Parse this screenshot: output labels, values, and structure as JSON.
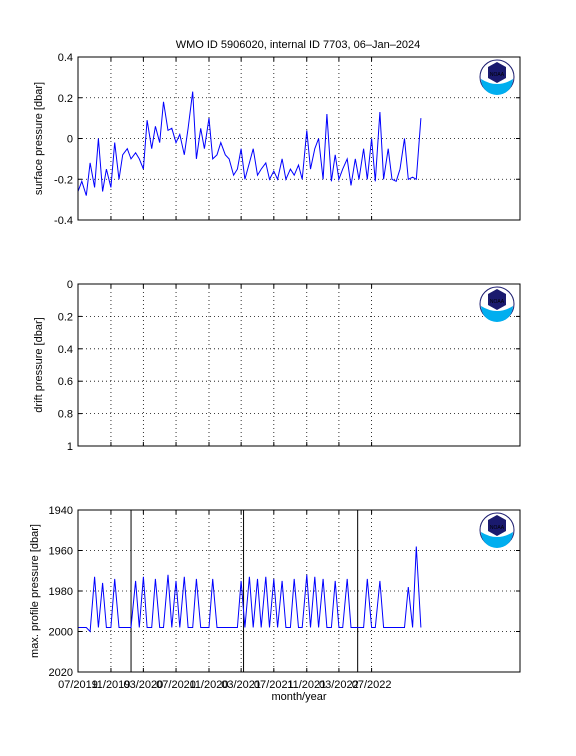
{
  "figure": {
    "title": "WMO ID 5906020, internal ID 7703, 06–Jan–2024",
    "background": "#ffffff",
    "line_color": "#0000ff",
    "logo_text": "NOAA",
    "logo_colors": {
      "dark": "#1a1a6e",
      "light": "#00aeef",
      "white": "#ffffff"
    }
  },
  "chart_data": [
    {
      "type": "line",
      "title": "WMO ID 5906020, internal ID 7703, 06–Jan–2024",
      "ylabel": "surface pressure [dbar]",
      "xlabel": "",
      "ylim": [
        -0.4,
        0.4
      ],
      "y_reversed": false,
      "yticks": [
        "-0.4",
        "-0.2",
        "0",
        "0.2",
        "0.4"
      ],
      "ytick_values": [
        -0.4,
        -0.2,
        0,
        0.2,
        0.4
      ],
      "xlim": [
        "2019-07-01",
        "2024-01-06"
      ],
      "grid": true,
      "vlines": [],
      "series": [
        {
          "x": [
            "2019-07-01",
            "2019-07-15",
            "2019-08-01",
            "2019-08-15",
            "2019-09-01",
            "2019-09-15",
            "2019-10-01",
            "2019-10-15",
            "2019-11-01",
            "2019-11-15",
            "2019-12-01",
            "2019-12-15",
            "2020-01-01",
            "2020-01-15",
            "2020-02-01",
            "2020-02-15",
            "2020-03-01",
            "2020-03-15",
            "2020-04-01",
            "2020-04-15",
            "2020-05-01",
            "2020-05-15",
            "2020-06-01",
            "2020-06-15",
            "2020-07-01",
            "2020-07-15",
            "2020-08-01",
            "2020-08-15",
            "2020-09-01",
            "2020-09-15",
            "2020-10-01",
            "2020-10-15",
            "2020-11-01",
            "2020-11-15",
            "2020-12-01",
            "2020-12-15",
            "2021-01-01",
            "2021-01-15",
            "2021-02-01",
            "2021-02-15",
            "2021-03-01",
            "2021-03-15",
            "2021-04-01",
            "2021-04-15",
            "2021-05-01",
            "2021-05-15",
            "2021-06-01",
            "2021-06-15",
            "2021-07-01",
            "2021-07-15",
            "2021-08-01",
            "2021-08-15",
            "2021-09-01",
            "2021-09-15",
            "2021-10-01",
            "2021-10-15",
            "2021-11-01",
            "2021-11-15",
            "2021-12-01",
            "2021-12-15",
            "2022-01-01",
            "2022-01-15",
            "2022-02-01",
            "2022-02-15",
            "2022-03-01",
            "2022-03-15",
            "2022-04-01",
            "2022-04-15",
            "2022-05-01",
            "2022-05-15",
            "2022-06-01",
            "2022-06-15",
            "2022-07-01",
            "2022-07-15",
            "2022-08-01",
            "2022-08-15",
            "2022-09-01",
            "2022-09-15",
            "2022-10-01",
            "2022-10-15",
            "2022-11-01",
            "2022-11-15",
            "2022-12-01",
            "2022-12-15",
            "2023-01-01"
          ],
          "y": [
            -0.26,
            -0.21,
            -0.28,
            -0.12,
            -0.24,
            0.0,
            -0.26,
            -0.15,
            -0.24,
            -0.02,
            -0.2,
            -0.08,
            -0.05,
            -0.1,
            -0.07,
            -0.1,
            -0.15,
            0.09,
            -0.05,
            0.06,
            -0.02,
            0.18,
            0.04,
            0.05,
            -0.02,
            0.02,
            -0.08,
            0.05,
            0.23,
            -0.1,
            0.05,
            -0.05,
            0.1,
            -0.1,
            -0.08,
            -0.02,
            -0.08,
            -0.1,
            -0.18,
            -0.15,
            -0.05,
            -0.2,
            -0.12,
            -0.05,
            -0.18,
            -0.15,
            -0.12,
            -0.2,
            -0.16,
            -0.2,
            -0.1,
            -0.2,
            -0.15,
            -0.18,
            -0.13,
            -0.2,
            0.04,
            -0.15,
            -0.05,
            0.0,
            -0.2,
            0.12,
            -0.21,
            -0.08,
            -0.2,
            -0.15,
            -0.1,
            -0.23,
            -0.1,
            -0.2,
            -0.05,
            -0.2,
            0.0,
            -0.21,
            0.13,
            -0.2,
            -0.05,
            -0.2,
            -0.21,
            -0.15,
            0.0,
            -0.2,
            -0.19,
            -0.2,
            0.1
          ]
        }
      ]
    },
    {
      "type": "line",
      "title": "",
      "ylabel": "drift pressure [dbar]",
      "xlabel": "",
      "ylim": [
        0,
        1
      ],
      "y_reversed": true,
      "yticks": [
        "0",
        "0.2",
        "0.4",
        "0.6",
        "0.8",
        "1"
      ],
      "ytick_values": [
        0,
        0.2,
        0.4,
        0.6,
        0.8,
        1
      ],
      "xlim": [
        "2019-07-01",
        "2024-01-06"
      ],
      "grid": true,
      "vlines": [],
      "series": []
    },
    {
      "type": "line",
      "title": "",
      "ylabel": "max. profile pressure [dbar]",
      "xlabel": "month/year",
      "ylim": [
        1940,
        2020
      ],
      "y_reversed": true,
      "yticks": [
        "1940",
        "1960",
        "1980",
        "2000",
        "2020"
      ],
      "ytick_values": [
        1940,
        1960,
        1980,
        2000,
        2020
      ],
      "xlim": [
        "2019-07-01",
        "2024-01-06"
      ],
      "xticks": [
        "07/2019",
        "11/2019",
        "03/2020",
        "07/2020",
        "11/2020",
        "03/2021",
        "07/2021",
        "11/2021",
        "03/2022",
        "07/2022"
      ],
      "xtick_dates": [
        "2019-07-01",
        "2019-11-01",
        "2020-03-01",
        "2020-07-01",
        "2020-11-01",
        "2021-03-01",
        "2021-07-01",
        "2021-11-01",
        "2022-03-01",
        "2022-07-01"
      ],
      "grid": true,
      "vlines": [
        "2020-01-15",
        "2021-03-10",
        "2022-05-10"
      ],
      "series": [
        {
          "x": [
            "2019-07-01",
            "2019-08-01",
            "2019-08-15",
            "2019-09-01",
            "2019-09-15",
            "2019-10-01",
            "2019-10-15",
            "2019-11-01",
            "2019-11-15",
            "2019-12-01",
            "2019-12-15",
            "2020-01-01",
            "2020-01-15",
            "2020-02-01",
            "2020-02-15",
            "2020-03-01",
            "2020-03-15",
            "2020-04-01",
            "2020-04-15",
            "2020-05-01",
            "2020-05-15",
            "2020-06-01",
            "2020-06-15",
            "2020-07-01",
            "2020-07-15",
            "2020-08-01",
            "2020-08-15",
            "2020-09-01",
            "2020-09-15",
            "2020-10-01",
            "2020-10-15",
            "2020-11-01",
            "2020-11-15",
            "2020-12-01",
            "2020-12-15",
            "2021-01-01",
            "2021-01-15",
            "2021-02-01",
            "2021-02-15",
            "2021-03-01",
            "2021-03-15",
            "2021-04-01",
            "2021-04-15",
            "2021-05-01",
            "2021-05-15",
            "2021-06-01",
            "2021-06-15",
            "2021-07-01",
            "2021-07-15",
            "2021-08-01",
            "2021-08-15",
            "2021-09-01",
            "2021-09-15",
            "2021-10-01",
            "2021-10-15",
            "2021-11-01",
            "2021-11-15",
            "2021-12-01",
            "2021-12-15",
            "2022-01-01",
            "2022-01-15",
            "2022-02-01",
            "2022-02-15",
            "2022-03-01",
            "2022-03-15",
            "2022-04-01",
            "2022-04-15",
            "2022-05-01",
            "2022-05-15",
            "2022-06-01",
            "2022-06-15",
            "2022-07-01",
            "2022-07-15",
            "2022-08-01",
            "2022-08-15",
            "2022-09-01",
            "2022-09-15",
            "2022-10-01",
            "2022-10-15",
            "2022-11-01",
            "2022-11-15",
            "2022-12-01",
            "2022-12-15",
            "2023-01-01"
          ],
          "y": [
            1998,
            1998,
            2000,
            1973,
            1998,
            1976,
            1998,
            1998,
            1974,
            1998,
            1998,
            1998,
            1998,
            1975,
            1998,
            1973,
            1998,
            1998,
            1974,
            1998,
            1998,
            1972,
            1998,
            1975,
            1998,
            1973,
            1998,
            1998,
            1974,
            1998,
            1998,
            1998,
            1974,
            1998,
            1998,
            1998,
            1998,
            1998,
            1998,
            1975,
            1998,
            1973,
            1998,
            1974,
            1998,
            1973,
            1998,
            1974,
            1998,
            1975,
            1998,
            1998,
            1974,
            1998,
            1998,
            1972,
            1998,
            1973,
            1998,
            1974,
            1998,
            1998,
            1975,
            1998,
            1998,
            1974,
            1998,
            1998,
            1998,
            1998,
            1974,
            1998,
            1998,
            1975,
            1998,
            1998,
            1998,
            1998,
            1998,
            1998,
            1978,
            1998,
            1958,
            1998
          ]
        }
      ]
    }
  ]
}
